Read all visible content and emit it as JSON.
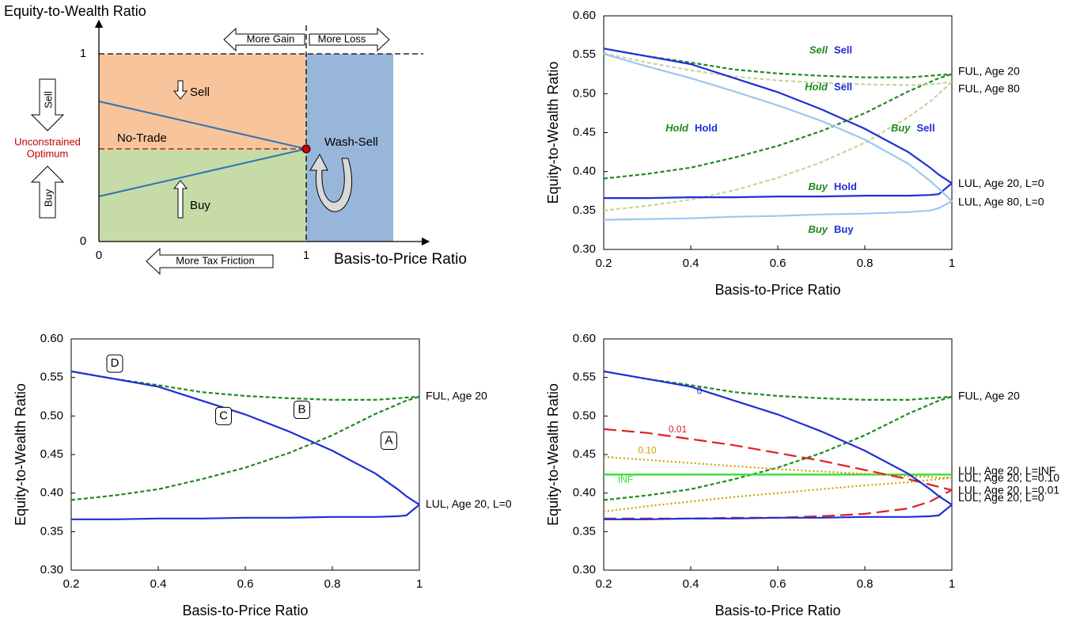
{
  "diagram": {
    "y_axis_title": "Equity-to-Wealth Ratio",
    "x_axis_title": "Basis-to-Price Ratio",
    "more_gain": "More Gain",
    "more_loss": "More Loss",
    "more_tax_friction": "More Tax Friction",
    "y_one": "1",
    "y_zero": "0",
    "x_zero": "0",
    "x_one": "1",
    "sell_side": "Sell",
    "buy_side": "Buy",
    "optimum": [
      "Unconstrained",
      "Optimum"
    ],
    "sell": "Sell",
    "buy": "Buy",
    "no_trade": "No-Trade",
    "wash_sell": "Wash-Sell"
  },
  "chart_data": [
    {
      "type": "line",
      "x_label": "Basis-to-Price Ratio",
      "y_label": "Equity-to-Wealth Ratio",
      "x": [
        0.2,
        0.3,
        0.4,
        0.5,
        0.6,
        0.7,
        0.8,
        0.9,
        0.95,
        0.97,
        1
      ],
      "xlim": [
        0.2,
        1
      ],
      "xticks": [
        0.2,
        0.4,
        0.6,
        0.8,
        1
      ],
      "ylim": [
        0.3,
        0.6
      ],
      "yticks": [
        {
          "value": 0.3,
          "label": "0.30"
        },
        {
          "value": 0.35,
          "label": "0.35"
        },
        {
          "value": 0.4,
          "label": "0.40"
        },
        {
          "value": 0.45,
          "label": "0.45"
        },
        {
          "value": 0.5,
          "label": "0.50"
        },
        {
          "value": 0.55,
          "label": "0.55"
        },
        {
          "value": 0.6,
          "label": "0.60"
        }
      ],
      "series": [
        {
          "name": "FUL, Age 20",
          "color": "#1e8a1e",
          "style": "dashed",
          "values": [
            0.558,
            0.548,
            0.54,
            0.531,
            0.526,
            0.523,
            0.521,
            0.521,
            0.523,
            0.524,
            0.525
          ],
          "values_lower": [
            0.391,
            0.397,
            0.405,
            0.418,
            0.433,
            0.452,
            0.475,
            0.503,
            0.515,
            0.52,
            0.525
          ]
        },
        {
          "name": "FUL, Age 80",
          "color": "#c8d4a0",
          "style": "dashed",
          "values": [
            0.552,
            0.54,
            0.53,
            0.522,
            0.517,
            0.514,
            0.512,
            0.511,
            0.512,
            0.513,
            0.515
          ],
          "values_lower": [
            0.35,
            0.356,
            0.364,
            0.376,
            0.392,
            0.412,
            0.437,
            0.47,
            0.49,
            0.5,
            0.515
          ]
        },
        {
          "name": "LUL, Age 20, L=0",
          "color": "#1f2fd6",
          "style": "solid",
          "values": [
            0.558,
            0.548,
            0.538,
            0.52,
            0.502,
            0.48,
            0.455,
            0.425,
            0.405,
            0.396,
            0.385
          ],
          "values_lower": [
            0.366,
            0.366,
            0.367,
            0.367,
            0.368,
            0.368,
            0.369,
            0.369,
            0.37,
            0.371,
            0.385
          ]
        },
        {
          "name": "LUL, Age 80, L=0",
          "color": "#9cc8ee",
          "style": "solid",
          "values": [
            0.551,
            0.535,
            0.52,
            0.503,
            0.485,
            0.465,
            0.441,
            0.41,
            0.388,
            0.378,
            0.362
          ],
          "values_lower": [
            0.338,
            0.339,
            0.34,
            0.342,
            0.343,
            0.345,
            0.346,
            0.348,
            0.35,
            0.353,
            0.362
          ]
        }
      ],
      "annotations": [
        {
          "ful": "Sell",
          "lul": "Sell"
        },
        {
          "ful": "Hold",
          "lul": "Sell"
        },
        {
          "ful": "Hold",
          "lul": "Hold"
        },
        {
          "ful": "Buy",
          "lul": "Sell"
        },
        {
          "ful": "Buy",
          "lul": "Hold"
        },
        {
          "ful": "Buy",
          "lul": "Buy"
        }
      ]
    },
    {
      "type": "line",
      "x_label": "Basis-to-Price Ratio",
      "y_label": "Equity-to-Wealth Ratio",
      "x": [
        0.2,
        0.3,
        0.4,
        0.5,
        0.6,
        0.7,
        0.8,
        0.9,
        0.95,
        0.97,
        1
      ],
      "xlim": [
        0.2,
        1
      ],
      "xticks": [
        0.2,
        0.4,
        0.6,
        0.8,
        1
      ],
      "ylim": [
        0.3,
        0.6
      ],
      "yticks": [
        {
          "value": 0.3,
          "label": "0.30"
        },
        {
          "value": 0.35,
          "label": "0.35"
        },
        {
          "value": 0.4,
          "label": "0.40"
        },
        {
          "value": 0.45,
          "label": "0.45"
        },
        {
          "value": 0.5,
          "label": "0.50"
        },
        {
          "value": 0.55,
          "label": "0.55"
        },
        {
          "value": 0.6,
          "label": "0.60"
        }
      ],
      "series": [
        {
          "name": "FUL, Age 20",
          "color": "#1e8a1e",
          "style": "dashed",
          "values": [
            0.558,
            0.548,
            0.54,
            0.531,
            0.526,
            0.523,
            0.521,
            0.521,
            0.523,
            0.524,
            0.525
          ],
          "values_lower": [
            0.391,
            0.397,
            0.405,
            0.418,
            0.433,
            0.452,
            0.475,
            0.503,
            0.515,
            0.52,
            0.525
          ]
        },
        {
          "name": "LUL, Age 20, L=0",
          "color": "#1f2fd6",
          "style": "solid",
          "values": [
            0.558,
            0.548,
            0.538,
            0.52,
            0.502,
            0.48,
            0.455,
            0.425,
            0.405,
            0.396,
            0.385
          ],
          "values_lower": [
            0.366,
            0.366,
            0.367,
            0.367,
            0.368,
            0.368,
            0.369,
            0.369,
            0.37,
            0.371,
            0.385
          ]
        }
      ],
      "boxes": [
        "D",
        "C",
        "B",
        "A"
      ]
    },
    {
      "type": "line",
      "x_label": "Basis-to-Price Ratio",
      "y_label": "Equity-to-Wealth Ratio",
      "x": [
        0.2,
        0.3,
        0.4,
        0.5,
        0.6,
        0.7,
        0.8,
        0.9,
        0.95,
        0.97,
        1
      ],
      "xlim": [
        0.2,
        1
      ],
      "xticks": [
        0.2,
        0.4,
        0.6,
        0.8,
        1
      ],
      "ylim": [
        0.3,
        0.6
      ],
      "yticks": [
        {
          "value": 0.3,
          "label": "0.30"
        },
        {
          "value": 0.35,
          "label": "0.35"
        },
        {
          "value": 0.4,
          "label": "0.40"
        },
        {
          "value": 0.45,
          "label": "0.45"
        },
        {
          "value": 0.5,
          "label": "0.50"
        },
        {
          "value": 0.55,
          "label": "0.55"
        },
        {
          "value": 0.6,
          "label": "0.60"
        }
      ],
      "series": [
        {
          "name": "FUL, Age 20",
          "color": "#1e8a1e",
          "style": "dashed",
          "values": [
            0.558,
            0.548,
            0.54,
            0.531,
            0.526,
            0.523,
            0.521,
            0.521,
            0.523,
            0.524,
            0.525
          ],
          "values_lower": [
            0.391,
            0.397,
            0.405,
            0.418,
            0.433,
            0.452,
            0.475,
            0.503,
            0.515,
            0.52,
            0.525
          ]
        },
        {
          "name": "LUL, Age 20, L=INF",
          "curve_label": "INF",
          "color": "#33dd33",
          "style": "solid",
          "values": [
            0.424,
            0.424,
            0.424,
            0.424,
            0.424,
            0.424,
            0.424,
            0.424,
            0.424,
            0.424,
            0.424
          ],
          "values_lower": [
            0.424,
            0.424,
            0.424,
            0.424,
            0.424,
            0.424,
            0.424,
            0.424,
            0.424,
            0.424,
            0.424
          ]
        },
        {
          "name": "LUL, Age 20, L=0.10",
          "curve_label": "0.10",
          "color": "#c8a000",
          "style": "dotted",
          "values": [
            0.447,
            0.443,
            0.439,
            0.435,
            0.431,
            0.428,
            0.425,
            0.422,
            0.421,
            0.42,
            0.42
          ],
          "values_lower": [
            0.376,
            0.383,
            0.389,
            0.395,
            0.4,
            0.405,
            0.41,
            0.414,
            0.417,
            0.418,
            0.42
          ]
        },
        {
          "name": "LUL, Age 20, L=0.01",
          "curve_label": "0.01",
          "color": "#e02020",
          "style": "longdash",
          "values": [
            0.483,
            0.478,
            0.47,
            0.462,
            0.452,
            0.442,
            0.43,
            0.418,
            0.411,
            0.408,
            0.404
          ],
          "values_lower": [
            0.367,
            0.367,
            0.367,
            0.368,
            0.368,
            0.37,
            0.373,
            0.38,
            0.389,
            0.395,
            0.404
          ]
        },
        {
          "name": "LUL, Age 20, L=0",
          "curve_label": "0",
          "color": "#1f2fd6",
          "style": "solid",
          "values": [
            0.558,
            0.548,
            0.538,
            0.52,
            0.502,
            0.48,
            0.455,
            0.425,
            0.405,
            0.396,
            0.385
          ],
          "values_lower": [
            0.366,
            0.366,
            0.367,
            0.367,
            0.368,
            0.368,
            0.369,
            0.369,
            0.37,
            0.371,
            0.385
          ]
        }
      ]
    }
  ]
}
